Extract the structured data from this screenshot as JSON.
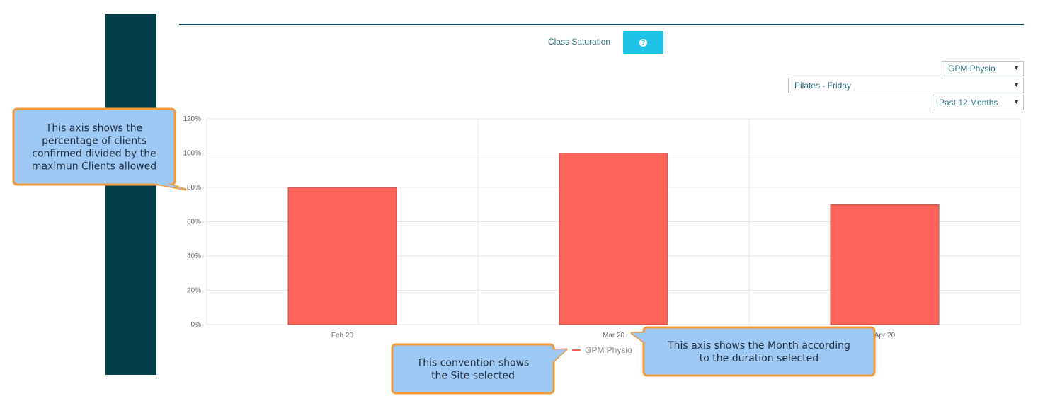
{
  "panel": {
    "title": "Class Saturation",
    "help_icon": "question-circle-icon",
    "filters": {
      "site": "GPM Physio",
      "class": "Pilates - Friday",
      "period": "Past 12 Months"
    }
  },
  "chart_data": {
    "type": "bar",
    "categories": [
      "Feb 20",
      "Mar 20",
      "Apr 20"
    ],
    "series": [
      {
        "name": "GPM Physio",
        "values": [
          80,
          100,
          70
        ],
        "color": "#fe635a"
      }
    ],
    "yticks": [
      "0%",
      "20%",
      "40%",
      "60%",
      "80%",
      "100%",
      "120%"
    ],
    "ylim": [
      0,
      120
    ],
    "grid": true,
    "legend_position": "bottom"
  },
  "annotations": [
    {
      "id": "y-axis-note",
      "lines": [
        "This axis shows the",
        "percentage of clients",
        "confirmed divided by the",
        "maximun Clients allowed"
      ]
    },
    {
      "id": "legend-note",
      "lines": [
        "This convention shows",
        "the Site selected"
      ]
    },
    {
      "id": "x-axis-note",
      "lines": [
        "This axis shows the Month according",
        "to the duration selected"
      ]
    }
  ]
}
